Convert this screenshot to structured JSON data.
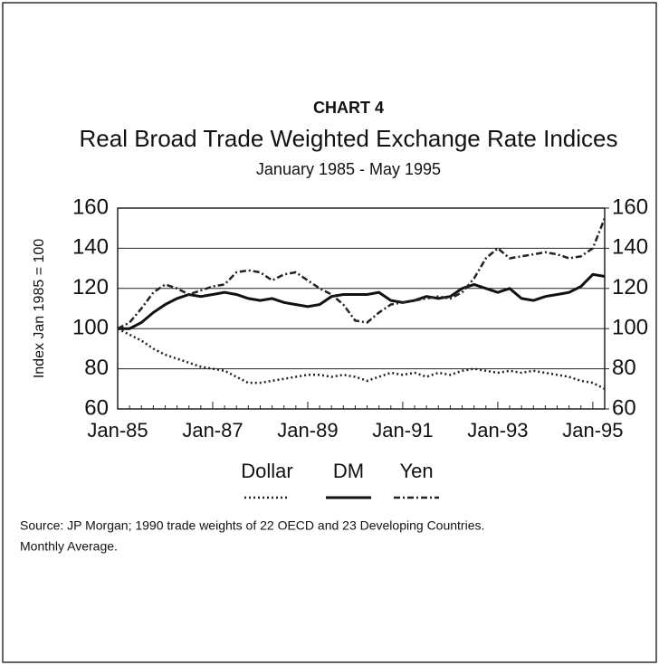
{
  "chart_data": {
    "type": "line",
    "chart_label": "CHART 4",
    "title": "Real Broad Trade Weighted Exchange Rate Indices",
    "subtitle": "January 1985 - May 1995",
    "y_label": "Index Jan 1985 = 100",
    "source": "Source:  JP Morgan; 1990 trade weights of 22 OECD and 23 Developing Countries.",
    "note": "Monthly Average.",
    "categories": [
      "Jan-85",
      null,
      null,
      null,
      null,
      null,
      null,
      null,
      "Jan-87",
      null,
      null,
      null,
      null,
      null,
      null,
      null,
      "Jan-89",
      null,
      null,
      null,
      null,
      null,
      null,
      null,
      "Jan-91",
      null,
      null,
      null,
      null,
      null,
      null,
      null,
      "Jan-93",
      null,
      null,
      null,
      null,
      null,
      null,
      null,
      "Jan-95",
      null
    ],
    "series": [
      {
        "name": "Dollar",
        "color": "#222222",
        "style": "dotted",
        "values": [
          100,
          97,
          94,
          90,
          87,
          85,
          83,
          81,
          80,
          79,
          76,
          73,
          73,
          74,
          75,
          76,
          77,
          77,
          76,
          77,
          76,
          74,
          76,
          78,
          77,
          78,
          76,
          78,
          77,
          79,
          80,
          79,
          78,
          79,
          78,
          79,
          78,
          77,
          76,
          74,
          73,
          70
        ]
      },
      {
        "name": "DM",
        "color": "#111111",
        "style": "solid",
        "values": [
          100,
          100,
          103,
          108,
          112,
          115,
          117,
          116,
          117,
          118,
          117,
          115,
          114,
          115,
          113,
          112,
          111,
          112,
          116,
          117,
          117,
          117,
          118,
          114,
          113,
          114,
          116,
          115,
          116,
          120,
          122,
          120,
          118,
          120,
          115,
          114,
          116,
          117,
          118,
          121,
          127,
          126
        ]
      },
      {
        "name": "Yen",
        "color": "#222222",
        "style": "dash-dot",
        "values": [
          100,
          103,
          110,
          118,
          122,
          120,
          117,
          119,
          121,
          122,
          128,
          129,
          128,
          124,
          127,
          128,
          124,
          120,
          117,
          112,
          104,
          103,
          108,
          112,
          113,
          114,
          115,
          116,
          115,
          118,
          125,
          135,
          140,
          135,
          136,
          137,
          138,
          137,
          135,
          136,
          140,
          155
        ]
      }
    ],
    "ylim": [
      60,
      160
    ],
    "yticks": [
      60,
      80,
      100,
      120,
      140,
      160
    ],
    "y2lim": [
      60,
      160
    ],
    "y2ticks": [
      60,
      80,
      100,
      120,
      140,
      160
    ],
    "grid": true
  }
}
